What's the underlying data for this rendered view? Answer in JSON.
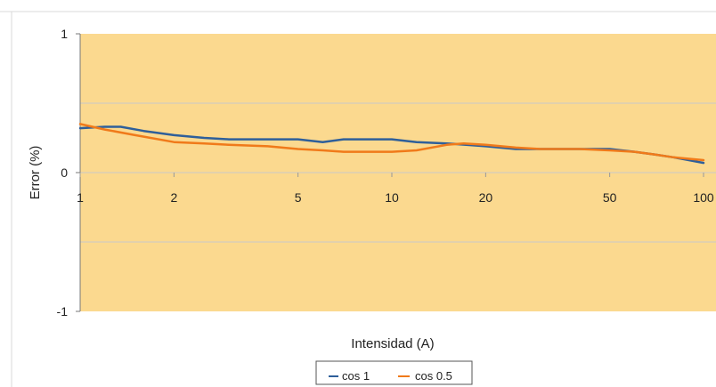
{
  "chart_data": {
    "type": "line",
    "title": "",
    "xlabel": "Intensidad (A)",
    "ylabel": "Error (%)",
    "x_scale": "log",
    "xlim": [
      1,
      100
    ],
    "ylim": [
      -1,
      1
    ],
    "x_ticks": [
      1,
      2,
      5,
      10,
      20,
      50,
      100
    ],
    "x_tick_labels": [
      "1",
      "2",
      "5",
      "10",
      "20",
      "50",
      "100"
    ],
    "y_ticks": [
      1,
      0,
      -1
    ],
    "y_tick_labels": [
      "1",
      "0",
      "-1"
    ],
    "grid_y": [
      0.5,
      0,
      -0.5
    ],
    "plot_background": "#fbd98f",
    "grid_color": "#c9c9c9",
    "legend_position": "bottom",
    "series": [
      {
        "name": "cos 1",
        "color": "#2e5f9a",
        "x": [
          1,
          1.2,
          1.35,
          1.6,
          2,
          2.5,
          3,
          4,
          5,
          6,
          7,
          8,
          10,
          12,
          15,
          20,
          25,
          30,
          40,
          50,
          60,
          70,
          80,
          100
        ],
        "y": [
          0.32,
          0.33,
          0.33,
          0.3,
          0.27,
          0.25,
          0.24,
          0.24,
          0.24,
          0.22,
          0.24,
          0.24,
          0.24,
          0.22,
          0.21,
          0.19,
          0.17,
          0.17,
          0.17,
          0.17,
          0.15,
          0.13,
          0.11,
          0.07
        ]
      },
      {
        "name": "cos 0.5",
        "color": "#f07a1a",
        "x": [
          1,
          1.2,
          1.5,
          2,
          2.5,
          3,
          4,
          5,
          6,
          7,
          8,
          10,
          12,
          15,
          17,
          20,
          25,
          30,
          40,
          50,
          60,
          70,
          80,
          100
        ],
        "y": [
          0.35,
          0.31,
          0.27,
          0.22,
          0.21,
          0.2,
          0.19,
          0.17,
          0.16,
          0.15,
          0.15,
          0.15,
          0.16,
          0.2,
          0.21,
          0.2,
          0.18,
          0.17,
          0.17,
          0.16,
          0.15,
          0.13,
          0.11,
          0.09
        ]
      }
    ]
  }
}
